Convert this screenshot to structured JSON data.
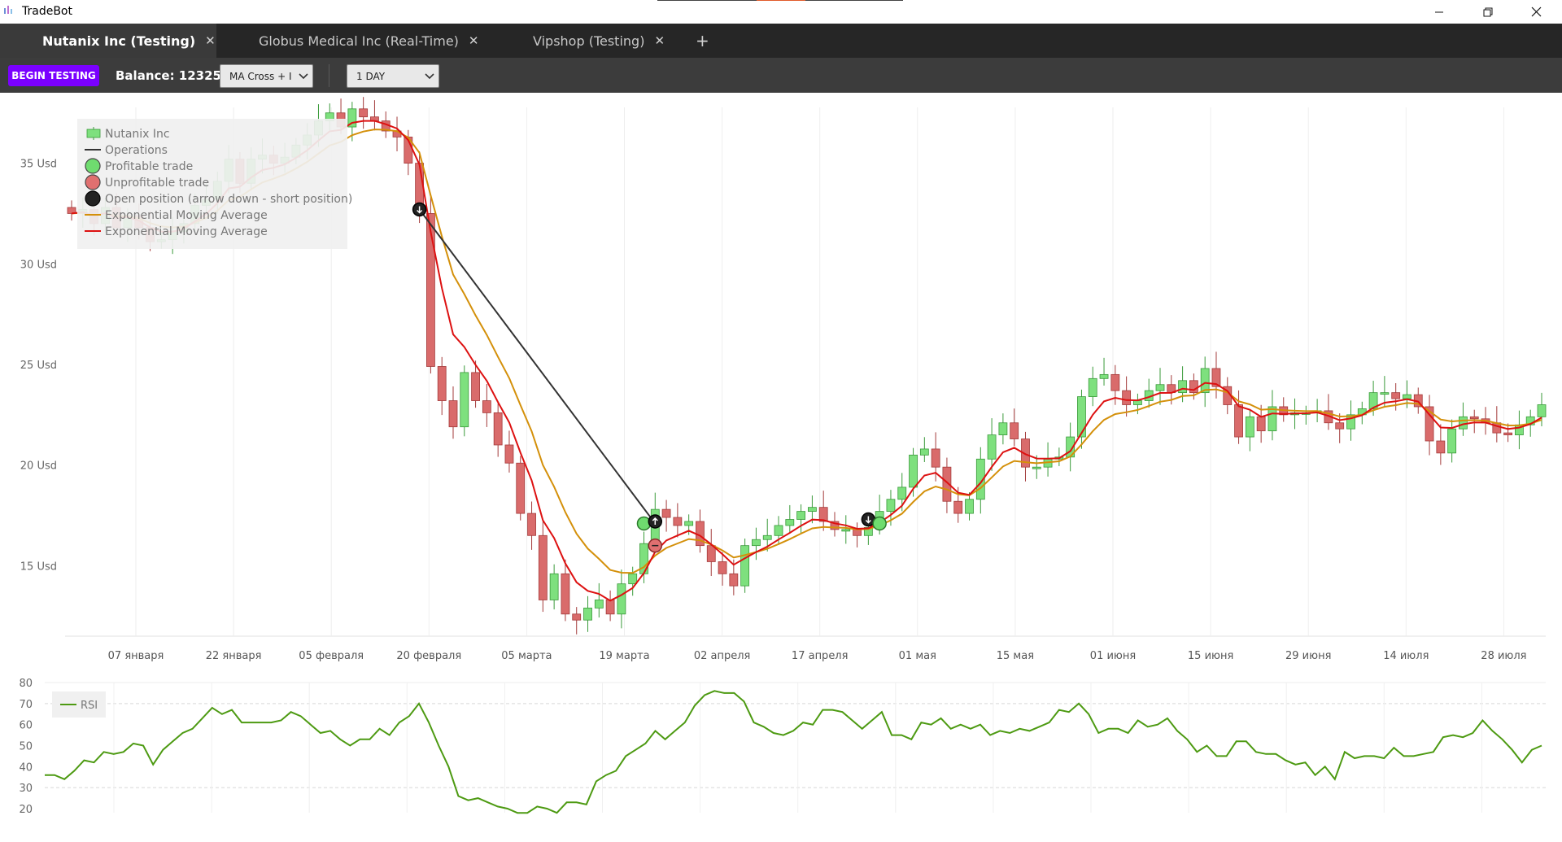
{
  "window": {
    "title": "TradeBot",
    "minimize_icon": "minimize-icon",
    "maximize_icon": "restore-icon",
    "close_icon": "close-icon"
  },
  "tabs": [
    {
      "label": "Nutanix Inc (Testing)",
      "active": true
    },
    {
      "label": "Globus Medical Inc (Real-Time)",
      "active": false
    },
    {
      "label": "Vipshop (Testing)",
      "active": false
    }
  ],
  "tab_add_icon": "plus-icon",
  "toolbar": {
    "begin_label": "BEGIN TESTING",
    "balance_label": "Balance: 12325",
    "strategy_value": "MA Cross + I",
    "interval_value": "1 DAY",
    "accent_color": "#7a00ff"
  },
  "legend": {
    "items": [
      {
        "label": "Nutanix Inc",
        "icon": "candle-icon",
        "color": "#7ee07e"
      },
      {
        "label": "Operations",
        "icon": "line-icon",
        "color": "#333333"
      },
      {
        "label": "Profitable trade",
        "icon": "circle-icon",
        "color": "#6fdc6f"
      },
      {
        "label": "Unprofitable trade",
        "icon": "circle-icon",
        "color": "#e07070"
      },
      {
        "label": "Open position (arrow down - short position)",
        "icon": "circle-icon",
        "color": "#222222"
      },
      {
        "label": "Exponential Moving Average",
        "icon": "line-icon",
        "color": "#d4900a"
      },
      {
        "label": "Exponential Moving Average",
        "icon": "line-icon",
        "color": "#dd1111"
      }
    ]
  },
  "chart_data": [
    {
      "type": "candlestick",
      "title": "",
      "y_ticks": [
        "35 Usd",
        "30 Usd",
        "25 Usd",
        "20 Usd",
        "15 Usd"
      ],
      "y_tick_values": [
        35,
        30,
        25,
        20,
        15
      ],
      "ylim": [
        11.5,
        38.5
      ],
      "x_ticks": [
        "07 января",
        "22 января",
        "05 февраля",
        "20 февраля",
        "05 марта",
        "19 марта",
        "02 апреля",
        "17 апреля",
        "01 мая",
        "15 мая",
        "01 июня",
        "15 июня",
        "29 июня",
        "14 июля",
        "28 июля"
      ],
      "grid": true,
      "legend_position": "top-left",
      "series": [
        {
          "name": "Nutanix Inc",
          "up_color": "#7ee07e",
          "down_color": "#d96b6b",
          "close": [
            32.5,
            32.7,
            32.0,
            32.8,
            31.8,
            32.4,
            31.8,
            31.1,
            31.2,
            31.6,
            32.0,
            32.9,
            33.2,
            34.1,
            35.2,
            34.0,
            35.2,
            35.4,
            35.0,
            35.3,
            35.9,
            36.4,
            37.1,
            37.5,
            36.8,
            37.7,
            37.3,
            37.1,
            36.6,
            36.3,
            35.0,
            32.5,
            24.9,
            23.2,
            21.9,
            24.6,
            23.2,
            22.6,
            21.0,
            20.1,
            17.6,
            16.5,
            13.3,
            14.6,
            12.6,
            12.3,
            12.9,
            13.3,
            12.6,
            14.1,
            14.6,
            16.1,
            17.8,
            17.4,
            17.0,
            17.2,
            16.0,
            15.2,
            14.6,
            14.0,
            16.0,
            16.3,
            16.5,
            17.0,
            17.3,
            17.7,
            17.9,
            17.2,
            16.8,
            16.8,
            16.5,
            16.9,
            17.7,
            18.3,
            18.9,
            20.5,
            20.8,
            19.9,
            18.2,
            17.6,
            18.3,
            20.3,
            21.5,
            22.1,
            21.3,
            19.9,
            19.9,
            20.3,
            20.4,
            21.4,
            23.4,
            24.3,
            24.5,
            23.7,
            23.0,
            23.2,
            23.7,
            24.0,
            23.6,
            24.2,
            23.6,
            24.8,
            23.9,
            23.0,
            21.4,
            22.4,
            21.7,
            22.9,
            22.5,
            22.6,
            22.6,
            22.7,
            22.1,
            21.8,
            22.5,
            22.8,
            23.6,
            23.6,
            23.3,
            23.5,
            22.9,
            21.2,
            20.6,
            21.8,
            22.4,
            22.3,
            22.1,
            21.6,
            21.5,
            22.0,
            22.4,
            23.0
          ]
        },
        {
          "name": "Operations",
          "color": "#333333",
          "points": [
            [
              31,
              32.7
            ],
            [
              52,
              17.1
            ]
          ]
        },
        {
          "name": "Exponential Moving Average",
          "color": "#d4900a"
        },
        {
          "name": "Exponential Moving Average",
          "color": "#dd1111"
        }
      ],
      "markers": [
        {
          "label": "Open position (arrow down - short position)",
          "index": 31,
          "value": 32.7,
          "kind": "open-short"
        },
        {
          "label": "Profitable trade",
          "index": 51,
          "value": 17.1,
          "kind": "profit-close"
        },
        {
          "label": "Open position (arrow down - short position)",
          "index": 52,
          "value": 17.2,
          "kind": "open-long"
        },
        {
          "label": "Unprofitable trade",
          "index": 52,
          "value": 16.0,
          "kind": "loss-close"
        },
        {
          "label": "Open position (arrow down - short position)",
          "index": 71,
          "value": 17.3,
          "kind": "open-short"
        },
        {
          "label": "Profitable trade",
          "index": 72,
          "value": 17.1,
          "kind": "profit-close"
        }
      ]
    },
    {
      "type": "line",
      "title": "",
      "y_ticks": [
        "80",
        "70",
        "60",
        "50",
        "40",
        "30",
        "20"
      ],
      "y_tick_values": [
        80,
        70,
        60,
        50,
        40,
        30,
        20
      ],
      "ylim": [
        20,
        80
      ],
      "legend_position": "top-left",
      "series": [
        {
          "name": "RSI",
          "color": "#4d9a12",
          "values": [
            36,
            36,
            34,
            38,
            43,
            42,
            47,
            46,
            47,
            51,
            50,
            41,
            48,
            52,
            56,
            58,
            63,
            68,
            65,
            67,
            61,
            61,
            61,
            61,
            62,
            66,
            64,
            60,
            56,
            57,
            53,
            50,
            53,
            53,
            58,
            55,
            61,
            64,
            70,
            61,
            50,
            40,
            26,
            24,
            25,
            23,
            21,
            20,
            18,
            18,
            21,
            20,
            18,
            23,
            23,
            22,
            33,
            36,
            38,
            45,
            48,
            51,
            57,
            53,
            57,
            61,
            69,
            74,
            76,
            75,
            75,
            71,
            61,
            59,
            56,
            55,
            57,
            61,
            60,
            67,
            67,
            66,
            62,
            58,
            62,
            66,
            55,
            55,
            53,
            61,
            60,
            63,
            58,
            60,
            58,
            60,
            55,
            57,
            56,
            58,
            57,
            59,
            61,
            67,
            66,
            70,
            65,
            56,
            58,
            58,
            56,
            62,
            59,
            60,
            63,
            57,
            53,
            47,
            50,
            45,
            45,
            52,
            52,
            47,
            46,
            46,
            43,
            41,
            42,
            36,
            40,
            34,
            47,
            44,
            45,
            45,
            44,
            49,
            45,
            45,
            46,
            47,
            54,
            55,
            54,
            56,
            62,
            57,
            53,
            48,
            42,
            48,
            50
          ]
        }
      ]
    }
  ]
}
